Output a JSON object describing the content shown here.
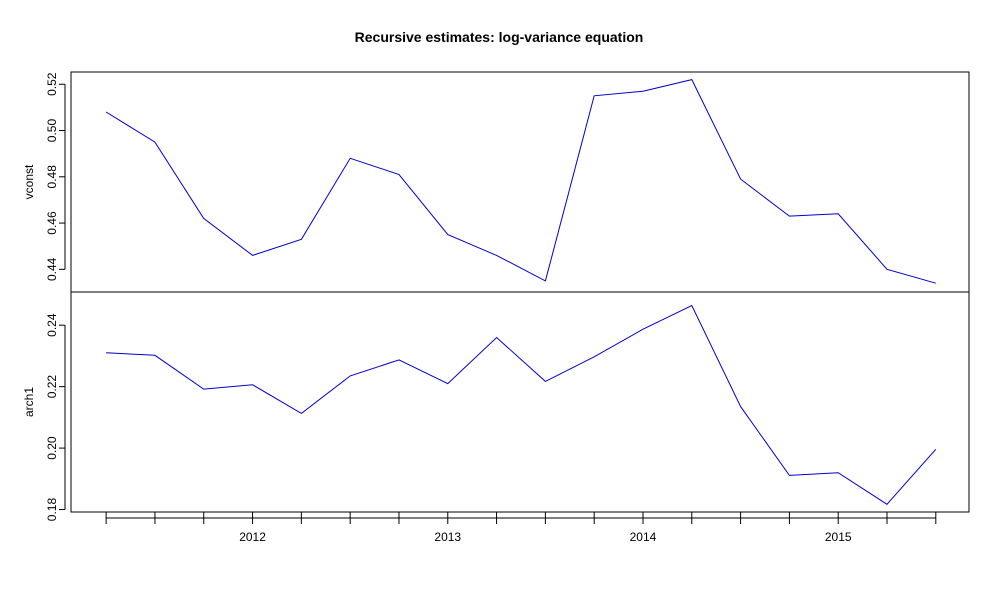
{
  "chart_data": {
    "type": "line",
    "title": "Recursive estimates: log-variance equation",
    "x_tick_labels": [
      "2012",
      "2013",
      "2014",
      "2015"
    ],
    "x_tick_positions": [
      2012,
      2013,
      2014,
      2015
    ],
    "x": [
      2011.25,
      2011.5,
      2011.75,
      2012.0,
      2012.25,
      2012.5,
      2012.75,
      2013.0,
      2013.25,
      2013.5,
      2013.75,
      2014.0,
      2014.25,
      2014.5,
      2014.75,
      2015.0,
      2015.25,
      2015.5
    ],
    "xlim": [
      2011.07,
      2015.67
    ],
    "line_color": "#0000cd",
    "panels": [
      {
        "name": "vconst",
        "ylabel": "vconst",
        "ylim": [
          0.4302,
          0.5253
        ],
        "y_ticks": [
          0.44,
          0.46,
          0.48,
          0.5,
          0.52
        ],
        "y_tick_labels": [
          "0.44",
          "0.46",
          "0.48",
          "0.50",
          "0.52"
        ],
        "values": [
          0.508,
          0.495,
          0.462,
          0.446,
          0.453,
          0.488,
          0.481,
          0.455,
          0.446,
          0.435,
          0.515,
          0.517,
          0.522,
          0.479,
          0.463,
          0.464,
          0.44,
          0.434
        ]
      },
      {
        "name": "arch1",
        "ylabel": "arch1",
        "ylim": [
          0.1792,
          0.2508
        ],
        "y_ticks": [
          0.18,
          0.2,
          0.22,
          0.24
        ],
        "y_tick_labels": [
          "0.18",
          "0.20",
          "0.22",
          "0.24"
        ],
        "values": [
          0.231,
          0.2302,
          0.2192,
          0.2206,
          0.2113,
          0.2235,
          0.2287,
          0.221,
          0.236,
          0.2217,
          0.2297,
          0.2387,
          0.2464,
          0.2135,
          0.1911,
          0.192,
          0.1817,
          0.1996
        ]
      }
    ]
  }
}
